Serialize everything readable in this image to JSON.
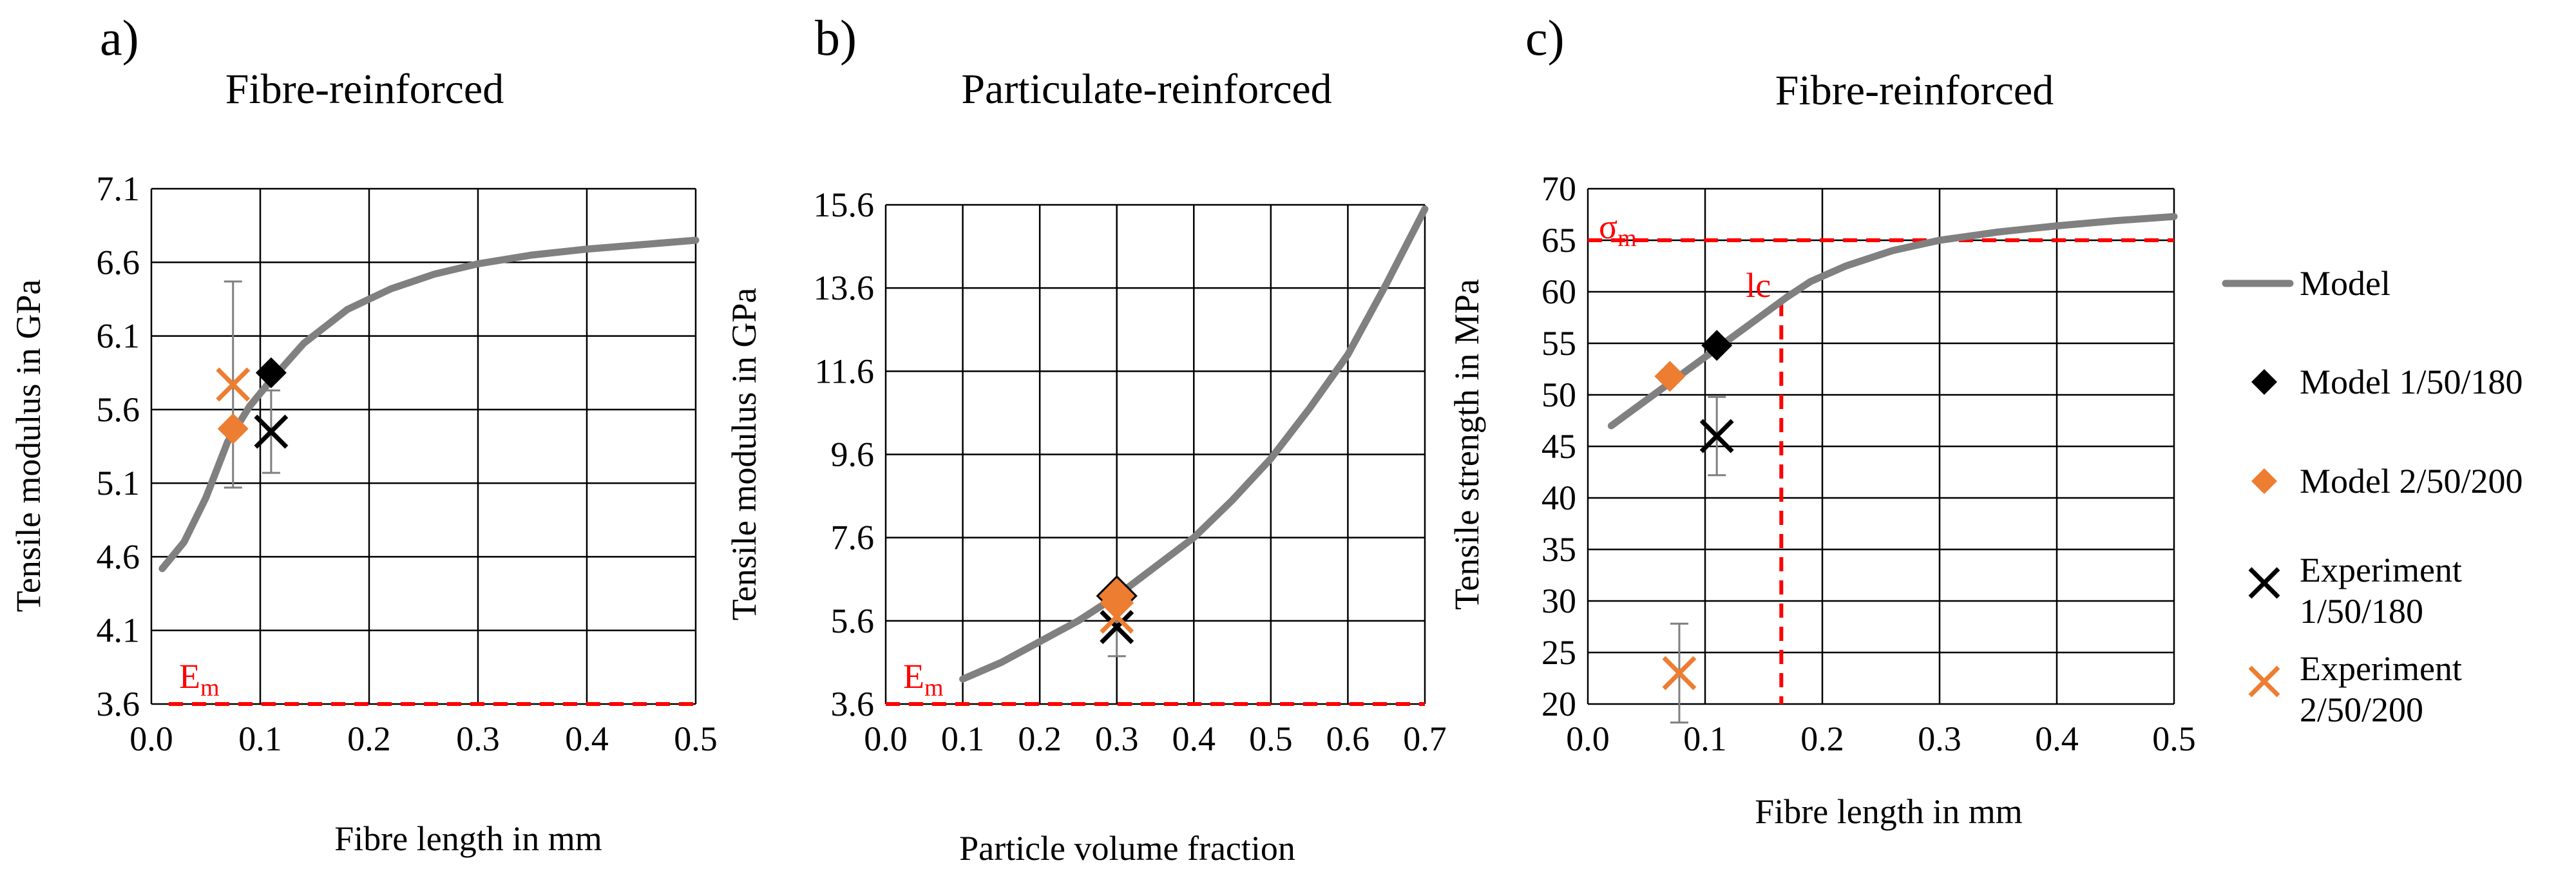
{
  "colors": {
    "model": "#808080",
    "black": "#000000",
    "orange": "#ED7D31",
    "ref": "#FF0000",
    "grid": "#000000",
    "errorbar": "#7F7F7F"
  },
  "chart_data": [
    {
      "type": "line",
      "panel_label": "a)",
      "title": "Fibre-reinforced",
      "xlabel": "Fibre length in mm",
      "ylabel": "Tensile modulus in GPa",
      "xlim": [
        0,
        0.5
      ],
      "ylim": [
        3.6,
        7.1
      ],
      "xticks": [
        "0.0",
        "0.1",
        "0.2",
        "0.3",
        "0.4",
        "0.5"
      ],
      "yticks": [
        "3.6",
        "4.1",
        "4.6",
        "5.1",
        "5.6",
        "6.1",
        "6.6",
        "7.1"
      ],
      "series": [
        {
          "name": "Model",
          "x": [
            0.01,
            0.03,
            0.05,
            0.07,
            0.09,
            0.11,
            0.14,
            0.18,
            0.22,
            0.26,
            0.3,
            0.35,
            0.4,
            0.45,
            0.5
          ],
          "y": [
            4.52,
            4.7,
            5.0,
            5.38,
            5.62,
            5.8,
            6.05,
            6.28,
            6.42,
            6.52,
            6.59,
            6.65,
            6.69,
            6.72,
            6.75
          ]
        },
        {
          "name": "Model 1/50/180",
          "x": [
            0.11
          ],
          "y": [
            5.85
          ]
        },
        {
          "name": "Model 2/50/200",
          "x": [
            0.075
          ],
          "y": [
            5.47
          ]
        },
        {
          "name": "Experiment 1/50/180",
          "x": [
            0.11
          ],
          "y": [
            5.45
          ],
          "err": [
            0.28,
            0.28
          ]
        },
        {
          "name": "Experiment 2/50/200",
          "x": [
            0.075
          ],
          "y": [
            5.77
          ],
          "err": [
            0.7,
            0.7
          ]
        }
      ],
      "reference": {
        "label_main": "E",
        "label_sub": "m",
        "value": 3.6
      }
    },
    {
      "type": "line",
      "panel_label": "b)",
      "title": "Particulate-reinforced",
      "xlabel": "Particle volume fraction",
      "ylabel": "Tensile modulus in GPa",
      "xlim": [
        0,
        0.7
      ],
      "ylim": [
        3.6,
        15.6
      ],
      "xticks": [
        "0.0",
        "0.1",
        "0.2",
        "0.3",
        "0.4",
        "0.5",
        "0.6",
        "0.7"
      ],
      "yticks": [
        "3.6",
        "5.6",
        "7.6",
        "9.6",
        "11.6",
        "13.6",
        "15.6"
      ],
      "series": [
        {
          "name": "Model",
          "x": [
            0.1,
            0.15,
            0.2,
            0.25,
            0.3,
            0.35,
            0.4,
            0.45,
            0.5,
            0.55,
            0.6,
            0.65,
            0.7
          ],
          "y": [
            4.2,
            4.6,
            5.1,
            5.6,
            6.2,
            6.9,
            7.6,
            8.5,
            9.5,
            10.7,
            12.0,
            13.7,
            15.5
          ]
        },
        {
          "name": "Model 1/50/180",
          "x": [
            0.3
          ],
          "y": [
            6.2
          ]
        },
        {
          "name": "Model 2/50/200",
          "x": [
            0.3
          ],
          "y": [
            6.05
          ]
        },
        {
          "name": "Experiment 1/50/180",
          "x": [
            0.3
          ],
          "y": [
            5.45
          ],
          "err": [
            0.7,
            0.6
          ]
        },
        {
          "name": "Experiment 2/50/200",
          "x": [
            0.3
          ],
          "y": [
            5.7
          ]
        }
      ],
      "reference": {
        "label_main": "E",
        "label_sub": "m",
        "value": 3.6
      }
    },
    {
      "type": "line",
      "panel_label": "c)",
      "title": "Fibre-reinforced",
      "xlabel": "Fibre length in mm",
      "ylabel": "Tensile strength in MPa",
      "xlim": [
        0,
        0.5
      ],
      "ylim": [
        20,
        70
      ],
      "xticks": [
        "0.0",
        "0.1",
        "0.2",
        "0.3",
        "0.4",
        "0.5"
      ],
      "yticks": [
        "20",
        "25",
        "30",
        "35",
        "40",
        "45",
        "50",
        "55",
        "60",
        "65",
        "70"
      ],
      "series": [
        {
          "name": "Model",
          "x": [
            0.02,
            0.05,
            0.08,
            0.11,
            0.14,
            0.17,
            0.19,
            0.22,
            0.26,
            0.3,
            0.35,
            0.4,
            0.45,
            0.5
          ],
          "y": [
            47.0,
            49.5,
            52.0,
            54.5,
            57.0,
            59.5,
            61.0,
            62.5,
            64.0,
            65.0,
            65.8,
            66.4,
            66.9,
            67.3
          ]
        },
        {
          "name": "Model 1/50/180",
          "x": [
            0.11
          ],
          "y": [
            54.8
          ]
        },
        {
          "name": "Model 2/50/200",
          "x": [
            0.07
          ],
          "y": [
            51.8
          ]
        },
        {
          "name": "Experiment 1/50/180",
          "x": [
            0.11
          ],
          "y": [
            46.0
          ],
          "err": [
            3.8,
            3.8
          ]
        },
        {
          "name": "Experiment 2/50/200",
          "x": [
            0.078
          ],
          "y": [
            23.0
          ],
          "err": [
            4.8,
            4.8
          ]
        }
      ],
      "reference": {
        "label_main": "σ",
        "label_sub": "m",
        "value": 65
      },
      "critical_length": {
        "label": "lc",
        "x": 0.165,
        "y": 59
      }
    }
  ],
  "legend": [
    {
      "label": "Model",
      "marker": "line",
      "color_key": "model"
    },
    {
      "label": "Model 1/50/180",
      "marker": "diamond",
      "color_key": "black"
    },
    {
      "label": "Model 2/50/200",
      "marker": "diamond",
      "color_key": "orange"
    },
    {
      "label": "Experiment 1/50/180",
      "line1": "Experiment",
      "line2": "1/50/180",
      "marker": "x",
      "color_key": "black"
    },
    {
      "label": "Experiment 2/50/200",
      "line1": "Experiment",
      "line2": "2/50/200",
      "marker": "x",
      "color_key": "orange"
    }
  ]
}
